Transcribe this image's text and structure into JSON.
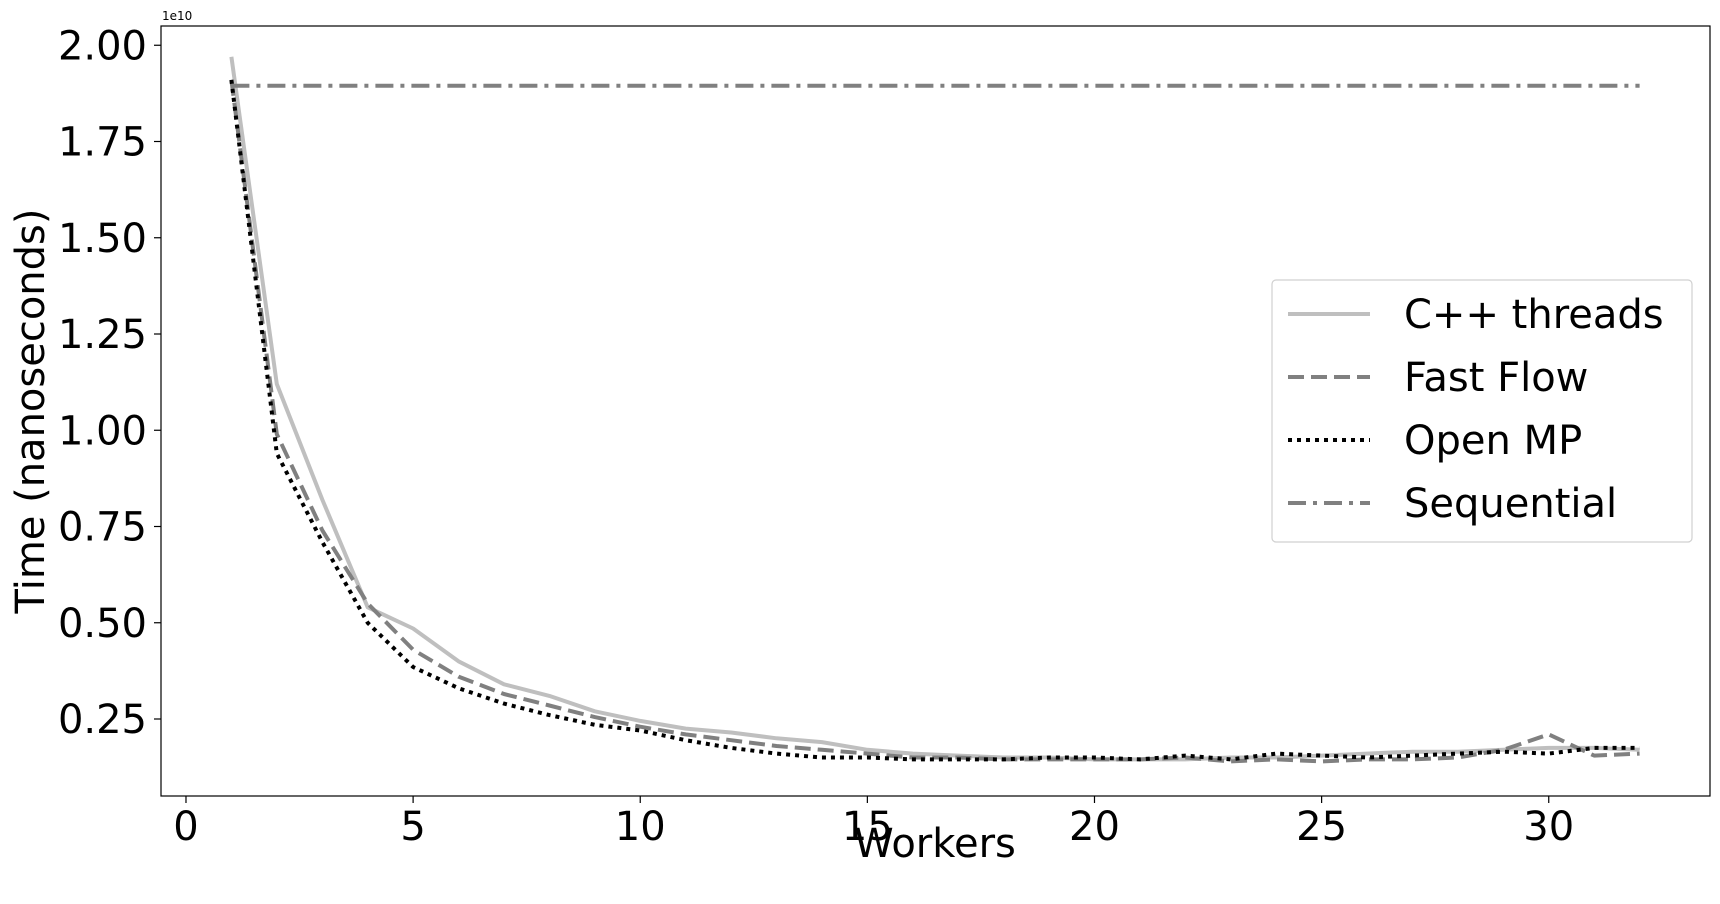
{
  "chart_data": {
    "type": "line",
    "title": "",
    "xlabel": "Workers",
    "ylabel": "Time (nanoseconds)",
    "y_offset_label": "1e10",
    "xlim": [
      -0.55,
      33.55
    ],
    "ylim": [
      0.05,
      2.05
    ],
    "x_ticks": [
      0,
      5,
      10,
      15,
      20,
      25,
      30
    ],
    "y_ticks": [
      0.25,
      0.5,
      0.75,
      1.0,
      1.25,
      1.5,
      1.75,
      2.0
    ],
    "y_tick_labels": [
      "0.25",
      "0.50",
      "0.75",
      "1.00",
      "1.25",
      "1.50",
      "1.75",
      "2.00"
    ],
    "grid": false,
    "legend_position": "center-right",
    "x": [
      1,
      2,
      3,
      4,
      5,
      6,
      7,
      8,
      9,
      10,
      11,
      12,
      13,
      14,
      15,
      16,
      17,
      18,
      19,
      20,
      21,
      22,
      23,
      24,
      25,
      26,
      27,
      28,
      29,
      30,
      31,
      32
    ],
    "series": [
      {
        "name": "C++ threads",
        "color": "#bfbfbf",
        "style": "solid",
        "values": [
          1.97,
          1.12,
          0.82,
          0.54,
          0.485,
          0.4,
          0.34,
          0.31,
          0.27,
          0.245,
          0.225,
          0.215,
          0.2,
          0.19,
          0.17,
          0.16,
          0.155,
          0.15,
          0.15,
          0.145,
          0.145,
          0.145,
          0.15,
          0.15,
          0.155,
          0.16,
          0.165,
          0.165,
          0.17,
          0.175,
          0.175,
          0.17
        ]
      },
      {
        "name": "Fast Flow",
        "color": "#808080",
        "style": "dashed",
        "values": [
          1.91,
          0.99,
          0.74,
          0.55,
          0.43,
          0.36,
          0.315,
          0.285,
          0.255,
          0.23,
          0.21,
          0.195,
          0.18,
          0.17,
          0.16,
          0.15,
          0.15,
          0.145,
          0.145,
          0.145,
          0.145,
          0.15,
          0.14,
          0.145,
          0.14,
          0.145,
          0.145,
          0.15,
          0.17,
          0.21,
          0.155,
          0.16
        ]
      },
      {
        "name": "Open MP",
        "color": "#000000",
        "style": "dotted",
        "values": [
          1.91,
          0.94,
          0.71,
          0.5,
          0.385,
          0.33,
          0.29,
          0.26,
          0.235,
          0.22,
          0.195,
          0.175,
          0.16,
          0.15,
          0.15,
          0.145,
          0.145,
          0.145,
          0.15,
          0.15,
          0.145,
          0.155,
          0.145,
          0.16,
          0.155,
          0.15,
          0.155,
          0.16,
          0.165,
          0.16,
          0.175,
          0.175
        ]
      },
      {
        "name": "Sequential",
        "color": "#808080",
        "style": "dashdot",
        "values": [
          1.895,
          1.895,
          1.895,
          1.895,
          1.895,
          1.895,
          1.895,
          1.895,
          1.895,
          1.895,
          1.895,
          1.895,
          1.895,
          1.895,
          1.895,
          1.895,
          1.895,
          1.895,
          1.895,
          1.895,
          1.895,
          1.895,
          1.895,
          1.895,
          1.895,
          1.895,
          1.895,
          1.895,
          1.895,
          1.895,
          1.895,
          1.895
        ]
      }
    ]
  }
}
